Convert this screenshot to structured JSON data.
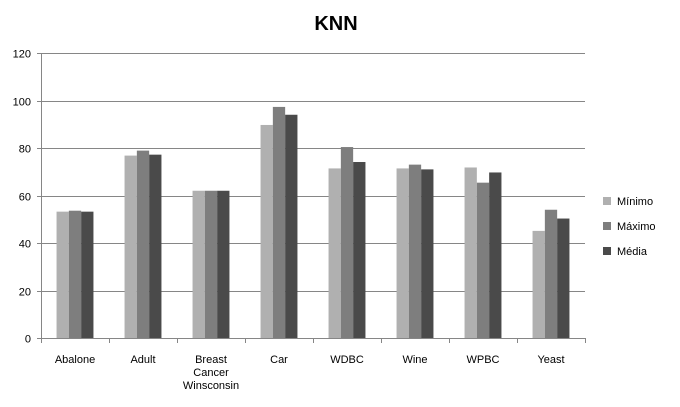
{
  "chart_data": {
    "type": "bar",
    "title": "KNN",
    "xlabel": "",
    "ylabel": "",
    "categories": [
      [
        "Abalone"
      ],
      [
        "Adult"
      ],
      [
        "Breast",
        "Cancer",
        "Winsconsin"
      ],
      [
        "Car"
      ],
      [
        "WDBC"
      ],
      [
        "Wine"
      ],
      [
        "WPBC"
      ],
      [
        "Yeast"
      ]
    ],
    "series": [
      {
        "name": "Mínimo",
        "color": "#b0b0b0",
        "values": [
          53.2,
          76.8,
          62.0,
          89.7,
          71.4,
          71.4,
          71.8,
          45.1
        ]
      },
      {
        "name": "Máximo",
        "color": "#7e7e7e",
        "values": [
          53.6,
          78.9,
          62.0,
          97.3,
          80.4,
          73.0,
          65.4,
          54.0
        ]
      },
      {
        "name": "Média",
        "color": "#4a4a4a",
        "values": [
          53.2,
          77.2,
          62.0,
          94.0,
          74.1,
          71.0,
          69.7,
          50.3
        ]
      }
    ],
    "ylim": [
      0,
      120
    ],
    "yticks": [
      0,
      20,
      40,
      60,
      80,
      100,
      120
    ],
    "grid": true,
    "legend_position": "right"
  }
}
